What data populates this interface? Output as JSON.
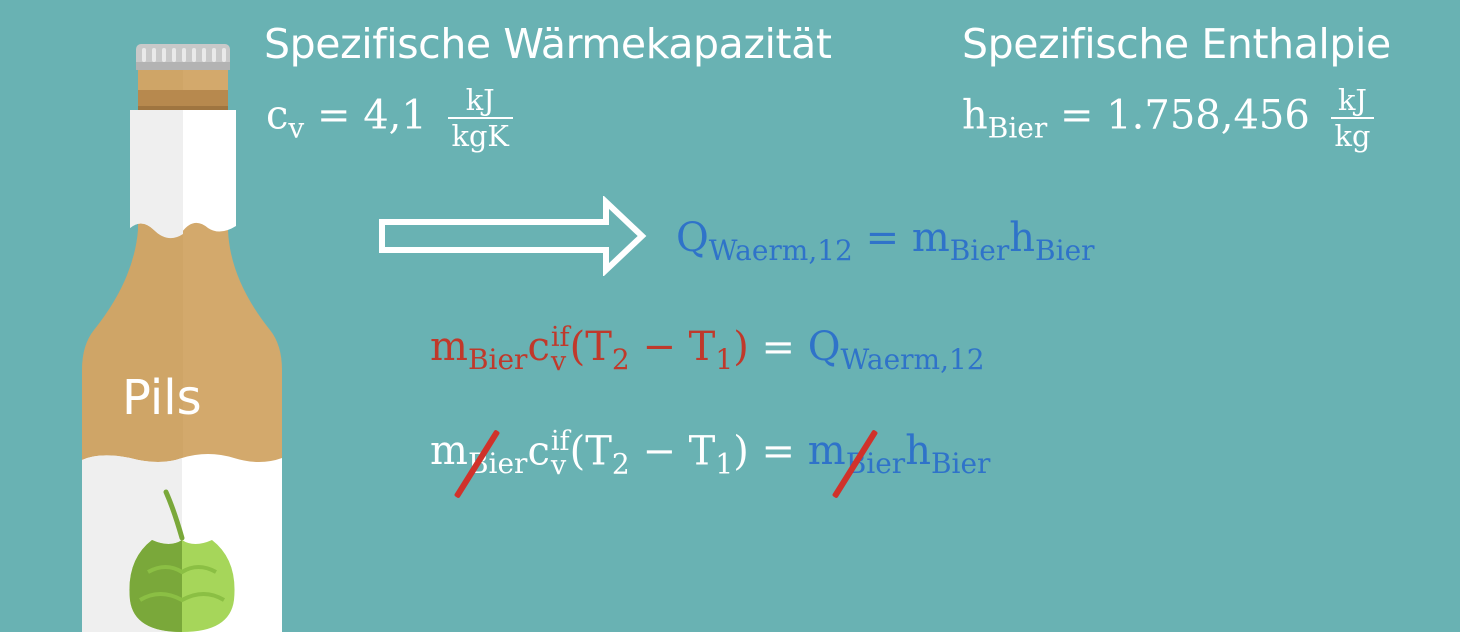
{
  "headings": {
    "heat_capacity": "Spezifische Wärmekapazität",
    "enthalpy": "Spezifische Enthalpie"
  },
  "bottle": {
    "label": "Pils",
    "colors": {
      "glass": "#d3a96c",
      "cap": "#c9c9c9",
      "band": "#b7894e",
      "label_white": "#ffffff",
      "hop_light": "#a6d65a",
      "hop_dark": "#7aa83a"
    }
  },
  "formulas": {
    "cv": {
      "symbol": "c",
      "sub": "v",
      "eq": "=",
      "value": "4,1",
      "unit_num": "kJ",
      "unit_den": "kgK"
    },
    "h": {
      "symbol": "h",
      "sub": "Bier",
      "eq": "=",
      "value": "1.758,456",
      "unit_num": "kJ",
      "unit_den": "kg"
    },
    "line1": {
      "lhs": "Q",
      "lhs_sub": "Waerm,12",
      "eq": "=",
      "m": "m",
      "m_sub": "Bier",
      "h": "h",
      "h_sub": "Bier"
    },
    "line2": {
      "m": "m",
      "m_sub": "Bier",
      "c": "c",
      "c_sup": "if",
      "c_sub": "v",
      "paren": "(T",
      "t2": "2",
      "minus": " − T",
      "t1": "1",
      "close": ")",
      "eq": "=",
      "rhs": "Q",
      "rhs_sub": "Waerm,12"
    },
    "line3": {
      "m": "m",
      "m_sub": "Bier",
      "c": "c",
      "c_sup": "if",
      "c_sub": "v",
      "paren": "(T",
      "t2": "2",
      "minus": " − T",
      "t1": "1",
      "close": ")",
      "eq": "=",
      "m2": "m",
      "m2_sub": "Bier",
      "h": "h",
      "h_sub": "Bier"
    }
  },
  "colors": {
    "background": "#69b2b3",
    "blue": "#2f73c9",
    "red": "#c0392b",
    "strike": "#d0322b"
  }
}
